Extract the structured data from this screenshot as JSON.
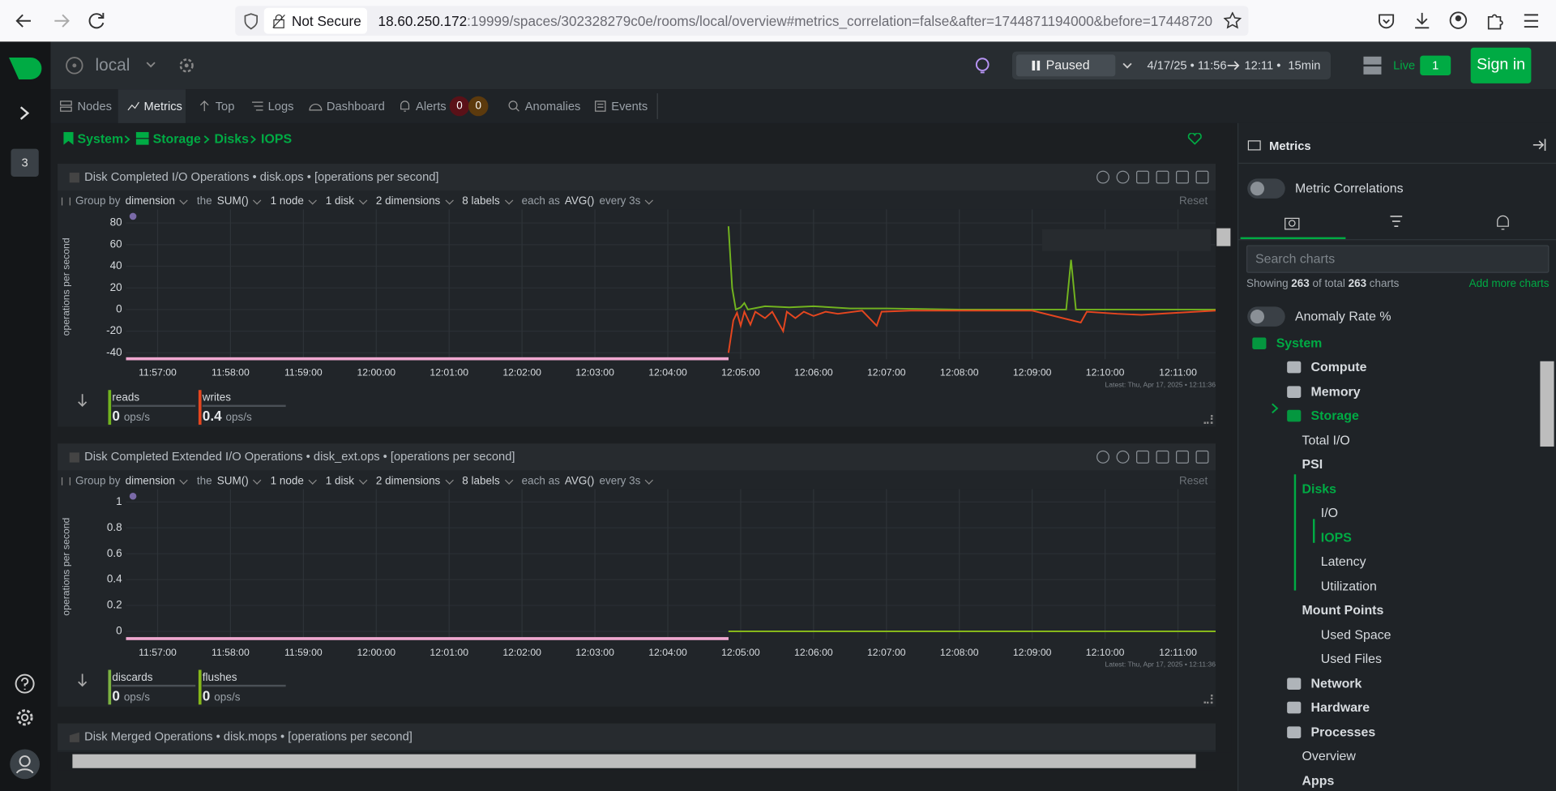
{
  "browser": {
    "security": "Not Secure",
    "url_host": "18.60.250.172",
    "url_path": ":19999/spaces/302328279c0e/rooms/local/overview#metrics_correlation=false&after=1744871194000&before=17448720"
  },
  "header": {
    "room": "local",
    "playback": "Paused",
    "date_start": "4/17/25 • 11:56",
    "date_end": "12:11 •",
    "duration": "15min",
    "live": "Live",
    "live_count": "1",
    "sign_in": "Sign in",
    "nodes_badge": "3"
  },
  "tabs": [
    {
      "label": "Nodes"
    },
    {
      "label": "Metrics"
    },
    {
      "label": "Top"
    },
    {
      "label": "Logs"
    },
    {
      "label": "Dashboard"
    },
    {
      "label": "Alerts",
      "critical": "0",
      "warning": "0"
    },
    {
      "label": "Anomalies"
    },
    {
      "label": "Events"
    }
  ],
  "breadcrumb": [
    "System",
    "Storage",
    "Disks",
    "IOPS"
  ],
  "chart_data": [
    {
      "type": "line",
      "title": "Disk Completed I/O Operations • disk.ops • [operations per second]",
      "controls": {
        "group_by": "Group by",
        "dimension": "dimension",
        "the": "the",
        "aggregate": "SUM()",
        "nodes": "1 node",
        "disks": "1 disk",
        "dimensions": "2 dimensions",
        "labels": "8 labels",
        "each_as": "each as",
        "time_aggregate": "AVG()",
        "every": "every 3s",
        "reset": "Reset"
      },
      "y_label": "operations per second",
      "xlim": [
        "11:56:34",
        "12:11:31"
      ],
      "xticks": [
        "11:57:00",
        "11:58:00",
        "11:59:00",
        "12:00:00",
        "12:01:00",
        "12:02:00",
        "12:03:00",
        "12:04:00",
        "12:05:00",
        "12:06:00",
        "12:07:00",
        "12:08:00",
        "12:09:00",
        "12:10:00",
        "12:11:00"
      ],
      "ylim": [
        -46,
        88
      ],
      "yticks": [
        80,
        60,
        40,
        20,
        0,
        -20,
        -40
      ],
      "grid": true,
      "latest": "Latest: Thu, Apr 17, 2025 • 12:11:36",
      "unit": "ops/s",
      "series": [
        {
          "name": "reads",
          "color": "#72b41f",
          "current": 0,
          "x": [
            "12:04:50",
            "12:04:53",
            "12:04:56",
            "12:05:00",
            "12:05:03",
            "12:05:06",
            "12:05:20",
            "12:05:40",
            "12:06:00",
            "12:06:30",
            "12:07:00",
            "12:08:00",
            "12:09:00",
            "12:09:28",
            "12:09:32",
            "12:09:36",
            "12:10:00",
            "12:11:00",
            "12:11:31"
          ],
          "values": [
            77,
            20,
            0,
            2,
            6,
            0,
            3,
            2,
            3,
            1,
            1,
            0,
            0,
            0,
            46,
            0,
            0,
            0,
            0
          ]
        },
        {
          "name": "writes",
          "color": "#e5461f",
          "current": 0.4,
          "x": [
            "12:04:50",
            "12:04:54",
            "12:04:57",
            "12:05:00",
            "12:05:03",
            "12:05:08",
            "12:05:12",
            "12:05:20",
            "12:05:26",
            "12:05:35",
            "12:05:38",
            "12:05:45",
            "12:05:52",
            "12:06:00",
            "12:06:10",
            "12:06:20",
            "12:06:40",
            "12:06:52",
            "12:06:56",
            "12:07:20",
            "12:08:00",
            "12:09:00",
            "12:09:40",
            "12:09:45",
            "12:10:10",
            "12:10:30",
            "12:11:00",
            "12:11:31"
          ],
          "values": [
            -40,
            -10,
            -3,
            -15,
            -2,
            -14,
            -2,
            -8,
            -2,
            -20,
            -2,
            -8,
            -2,
            -6,
            -2,
            -4,
            -1,
            -15,
            -2,
            -1,
            -1,
            -1,
            -12,
            -2,
            -4,
            -5,
            -3,
            -1
          ]
        }
      ]
    },
    {
      "type": "line",
      "title": "Disk Completed Extended I/O Operations • disk_ext.ops • [operations per second]",
      "controls": {
        "group_by": "Group by",
        "dimension": "dimension",
        "the": "the",
        "aggregate": "SUM()",
        "nodes": "1 node",
        "disks": "1 disk",
        "dimensions": "2 dimensions",
        "labels": "8 labels",
        "each_as": "each as",
        "time_aggregate": "AVG()",
        "every": "every 3s",
        "reset": "Reset"
      },
      "y_label": "operations per second",
      "xlim": [
        "11:56:34",
        "12:11:31"
      ],
      "xticks": [
        "11:57:00",
        "11:58:00",
        "11:59:00",
        "12:00:00",
        "12:01:00",
        "12:02:00",
        "12:03:00",
        "12:04:00",
        "12:05:00",
        "12:06:00",
        "12:07:00",
        "12:08:00",
        "12:09:00",
        "12:10:00",
        "12:11:00"
      ],
      "ylim": [
        -0.06,
        1.06
      ],
      "yticks": [
        1,
        0.8,
        0.6,
        0.4,
        0.2,
        0
      ],
      "grid": true,
      "latest": "Latest: Thu, Apr 17, 2025 • 12:11:36",
      "unit": "ops/s",
      "series": [
        {
          "name": "discards",
          "color": "#7cb342",
          "current": 0,
          "x": [
            "12:04:50",
            "12:11:31"
          ],
          "values": [
            0,
            0
          ]
        },
        {
          "name": "flushes",
          "color": "#86b81a",
          "current": 0,
          "x": [
            "12:04:50",
            "12:11:31"
          ],
          "values": [
            0,
            0
          ]
        }
      ]
    }
  ],
  "next_chart": {
    "title": "Disk Merged Operations • disk.mops • [operations per second]"
  },
  "panel": {
    "title": "Metrics",
    "metric_correlations": "Metric Correlations",
    "search_placeholder": "Search charts",
    "showing": "Showing",
    "shown": "263",
    "of_total": "of total",
    "total": "263",
    "charts": "charts",
    "add_more": "Add more charts",
    "anomaly_rate": "Anomaly Rate %",
    "tree": [
      {
        "label": "System"
      },
      {
        "label": "Compute"
      },
      {
        "label": "Memory"
      },
      {
        "label": "Storage"
      },
      {
        "label": "Total I/O"
      },
      {
        "label": "PSI"
      },
      {
        "label": "Disks"
      },
      {
        "label": "I/O"
      },
      {
        "label": "IOPS"
      },
      {
        "label": "Latency"
      },
      {
        "label": "Utilization"
      },
      {
        "label": "Mount Points"
      },
      {
        "label": "Used Space"
      },
      {
        "label": "Used Files"
      },
      {
        "label": "Network"
      },
      {
        "label": "Hardware"
      },
      {
        "label": "Processes"
      },
      {
        "label": "Overview"
      },
      {
        "label": "Apps"
      }
    ]
  }
}
